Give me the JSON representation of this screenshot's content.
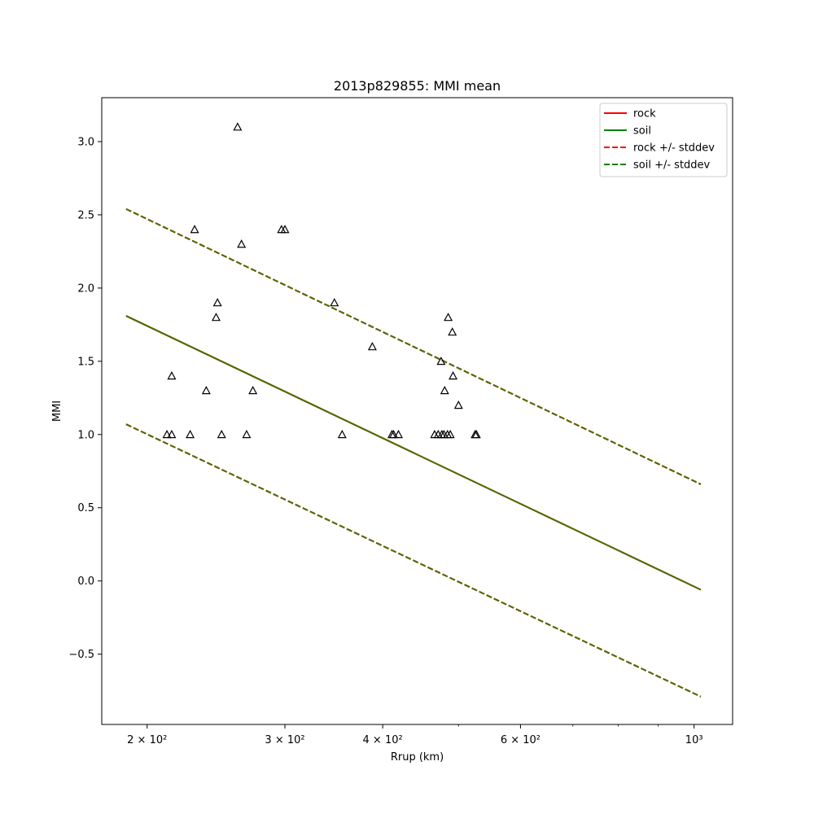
{
  "chart_data": {
    "type": "scatter",
    "title": "2013p829855: MMI mean",
    "xlabel": "Rrup (km)",
    "ylabel": "MMI",
    "xscale": "log",
    "xlim": [
      175,
      1120
    ],
    "ylim": [
      -0.98,
      3.3
    ],
    "x_ticks": [
      {
        "value": 200,
        "label": "2 × 10²"
      },
      {
        "value": 300,
        "label": "3 × 10²"
      },
      {
        "value": 400,
        "label": "4 × 10²"
      },
      {
        "value": 600,
        "label": "6 × 10²"
      },
      {
        "value": 1000,
        "label": "10³"
      }
    ],
    "y_ticks": [
      {
        "value": -0.5,
        "label": "−0.5"
      },
      {
        "value": 0.0,
        "label": "0.0"
      },
      {
        "value": 0.5,
        "label": "0.5"
      },
      {
        "value": 1.0,
        "label": "1.0"
      },
      {
        "value": 1.5,
        "label": "1.5"
      },
      {
        "value": 2.0,
        "label": "2.0"
      },
      {
        "value": 2.5,
        "label": "2.5"
      },
      {
        "value": 3.0,
        "label": "3.0"
      }
    ],
    "grid": false,
    "legend_position": "top-right",
    "legend": [
      {
        "label": "rock",
        "color": "#ff0000",
        "style": "solid"
      },
      {
        "label": "soil",
        "color": "#008000",
        "style": "solid"
      },
      {
        "label": "rock +/- stddev",
        "color": "#ff0000",
        "style": "dashed"
      },
      {
        "label": "soil +/- stddev",
        "color": "#008000",
        "style": "dashed"
      }
    ],
    "lines": [
      {
        "color": "#ff0000",
        "style": "solid",
        "x": [
          188,
          1020
        ],
        "y": [
          1.81,
          -0.06
        ]
      },
      {
        "color": "#ff0000",
        "style": "dashed",
        "x": [
          188,
          1020
        ],
        "y": [
          2.54,
          0.66
        ]
      },
      {
        "color": "#ff0000",
        "style": "dashed",
        "x": [
          188,
          1020
        ],
        "y": [
          1.07,
          -0.79
        ]
      },
      {
        "color": "#4d6b00",
        "style": "solid",
        "x": [
          188,
          1020
        ],
        "y": [
          1.81,
          -0.06
        ]
      },
      {
        "color": "#4d6b00",
        "style": "dashed",
        "x": [
          188,
          1020
        ],
        "y": [
          2.54,
          0.66
        ]
      },
      {
        "color": "#4d6b00",
        "style": "dashed",
        "x": [
          188,
          1020
        ],
        "y": [
          1.07,
          -0.79
        ]
      }
    ],
    "points": [
      {
        "x": 212,
        "y": 1.0
      },
      {
        "x": 215,
        "y": 1.0
      },
      {
        "x": 215,
        "y": 1.4
      },
      {
        "x": 227,
        "y": 1.0
      },
      {
        "x": 230,
        "y": 2.4
      },
      {
        "x": 238,
        "y": 1.3
      },
      {
        "x": 245,
        "y": 1.8
      },
      {
        "x": 246,
        "y": 1.9
      },
      {
        "x": 249,
        "y": 1.0
      },
      {
        "x": 261,
        "y": 3.1
      },
      {
        "x": 264,
        "y": 2.3
      },
      {
        "x": 268,
        "y": 1.0
      },
      {
        "x": 273,
        "y": 1.3
      },
      {
        "x": 297,
        "y": 2.4
      },
      {
        "x": 300,
        "y": 2.4
      },
      {
        "x": 347,
        "y": 1.9
      },
      {
        "x": 355,
        "y": 1.0
      },
      {
        "x": 388,
        "y": 1.6
      },
      {
        "x": 411,
        "y": 1.0
      },
      {
        "x": 413,
        "y": 1.0
      },
      {
        "x": 419,
        "y": 1.0
      },
      {
        "x": 466,
        "y": 1.0
      },
      {
        "x": 471,
        "y": 1.0
      },
      {
        "x": 475,
        "y": 1.5
      },
      {
        "x": 476,
        "y": 1.0
      },
      {
        "x": 479,
        "y": 1.0
      },
      {
        "x": 480,
        "y": 1.3
      },
      {
        "x": 484,
        "y": 1.0
      },
      {
        "x": 485,
        "y": 1.8
      },
      {
        "x": 488,
        "y": 1.0
      },
      {
        "x": 491,
        "y": 1.7
      },
      {
        "x": 492,
        "y": 1.4
      },
      {
        "x": 500,
        "y": 1.2
      },
      {
        "x": 525,
        "y": 1.0
      },
      {
        "x": 527,
        "y": 1.0
      }
    ]
  }
}
